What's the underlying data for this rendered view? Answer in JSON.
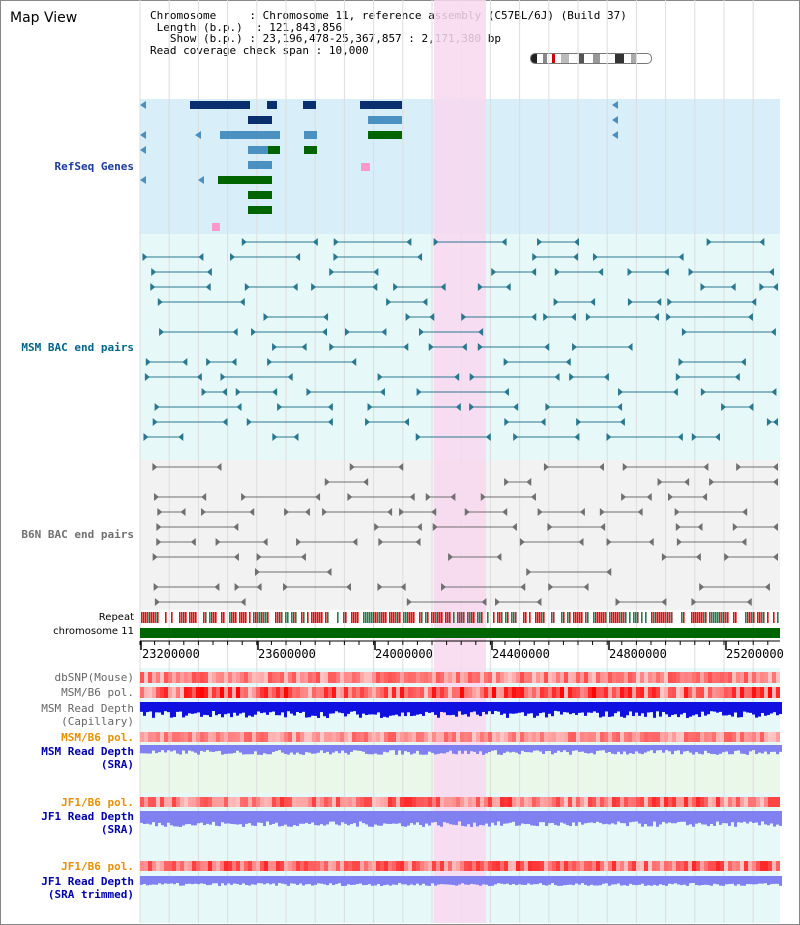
{
  "title": "Map View",
  "info": {
    "chromosome_label": "Chromosome",
    "chromosome_value": "Chromosome 11, reference assembly (C57BL/6J) (Build 37)",
    "length_label": "Length (b.p.)",
    "length_value": "121,843,856",
    "show_label": "Show (b.p.)",
    "show_value": "23,196,478-25,367,857 : 2,171,380 bp",
    "coverage_label": "Read coverage check span",
    "coverage_value": "10,000"
  },
  "tracks": {
    "refseq": "RefSeq Genes",
    "msm_bac": "MSM BAC end pairs",
    "b6n_bac": "B6N BAC end pairs",
    "repeat": "Repeat",
    "chromosome": "chromosome 11",
    "dbsnp": "dbSNP(Mouse)",
    "msm_b6_pol_1": "MSM/B6 pol.",
    "msm_depth_cap_1": "MSM Read Depth",
    "msm_depth_cap_2": "(Capillary)",
    "msm_b6_pol_2": "MSM/B6 pol.",
    "msm_depth_sra_1": "MSM Read Depth",
    "msm_depth_sra_2": "(SRA)",
    "jf1_b6_pol_1": "JF1/B6 pol.",
    "jf1_depth_sra_1": "JF1 Read Depth",
    "jf1_depth_sra_2": "(SRA)",
    "jf1_b6_pol_2": "JF1/B6 pol.",
    "jf1_depth_trim_1": "JF1 Read Depth",
    "jf1_depth_trim_2": "(SRA trimmed)"
  },
  "axis": {
    "ticks": [
      "23200000",
      "23600000",
      "24000000",
      "24400000",
      "24800000",
      "25200000"
    ]
  },
  "colors": {
    "highlight": "#f8d8f0",
    "refseq_bg": "#d8eef8",
    "msm_bac_bg": "#e6f8f8",
    "b6n_bac_bg": "#f2f2f2",
    "gene_dark": "#0a2f6e",
    "gene_light": "#4a90c0",
    "gene_green": "#006400",
    "gene_pink": "#ff99cc",
    "bac_msm": "#2a7890",
    "bac_b6n": "#707070",
    "chromosome_bar": "#006400",
    "label_msm": "#006688",
    "label_refseq": "#1a3a9a",
    "label_orange": "#e89000",
    "label_blue": "#0000aa",
    "depth_blue": "#1010e0",
    "depth_light": "#8080f0"
  }
}
